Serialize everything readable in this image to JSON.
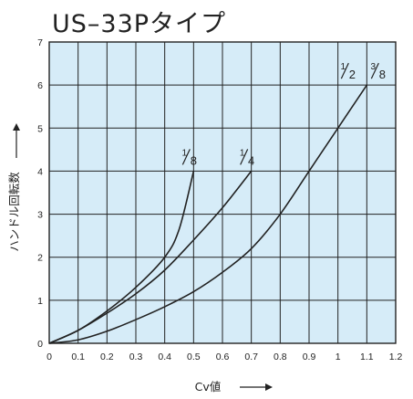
{
  "title": "US–33Pタイプ",
  "chart_data": {
    "type": "line",
    "title": "US–33Pタイプ",
    "xlabel": "Cv値",
    "ylabel": "ハンドル回転数",
    "xlim": [
      0,
      1.2
    ],
    "ylim": [
      0,
      7
    ],
    "xticks": [
      "0",
      "0.1",
      "0.2",
      "0.3",
      "0.4",
      "0.5",
      "0.6",
      "0.7",
      "0.8",
      "0.9",
      "1",
      "1.1",
      "1.2"
    ],
    "yticks": [
      "0",
      "1",
      "2",
      "3",
      "4",
      "5",
      "6",
      "7"
    ],
    "grid": true,
    "background": "#d6ecf8",
    "line_color": "#222222",
    "series": [
      {
        "name": "1/8",
        "label_num": "1",
        "label_den": "8",
        "x": [
          0,
          0.1,
          0.2,
          0.3,
          0.4,
          0.45,
          0.5
        ],
        "y": [
          0,
          0.3,
          0.75,
          1.3,
          2.0,
          2.65,
          4.0
        ]
      },
      {
        "name": "1/4",
        "label_num": "1",
        "label_den": "4",
        "x": [
          0,
          0.1,
          0.2,
          0.3,
          0.4,
          0.5,
          0.6,
          0.7
        ],
        "y": [
          0,
          0.3,
          0.7,
          1.15,
          1.7,
          2.4,
          3.15,
          4.0
        ]
      },
      {
        "name": "1/2 3/8",
        "label_parts": [
          {
            "num": "1",
            "den": "2"
          },
          {
            "num": "3",
            "den": "8"
          }
        ],
        "x": [
          0,
          0.1,
          0.2,
          0.3,
          0.4,
          0.5,
          0.6,
          0.7,
          0.8,
          0.9,
          1.0,
          1.1
        ],
        "y": [
          0,
          0.08,
          0.28,
          0.55,
          0.85,
          1.2,
          1.65,
          2.2,
          3.0,
          4.0,
          5.0,
          6.0
        ]
      }
    ]
  }
}
